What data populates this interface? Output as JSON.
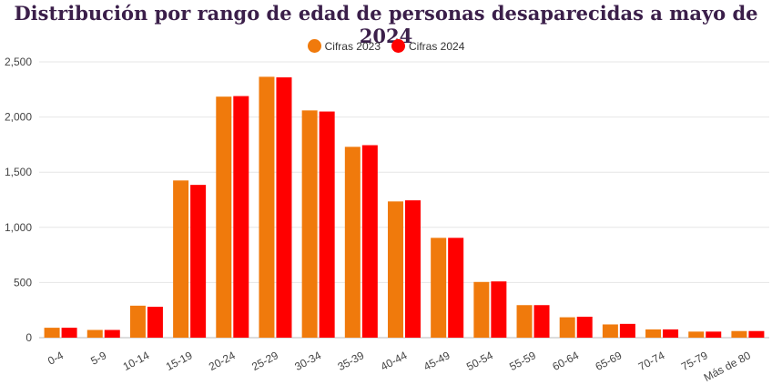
{
  "chart_data": {
    "type": "bar",
    "title": "Distribución por rango de edad de personas desaparecidas a mayo de 2024",
    "xlabel": "",
    "ylabel": "",
    "categories": [
      "0-4",
      "5-9",
      "10-14",
      "15-19",
      "20-24",
      "25-29",
      "30-34",
      "35-39",
      "40-44",
      "45-49",
      "50-54",
      "55-59",
      "60-64",
      "65-69",
      "70-74",
      "75-79",
      "Más de 80"
    ],
    "series": [
      {
        "name": "Cifras 2023",
        "color": "#f07a0c",
        "values": [
          90,
          70,
          290,
          1425,
          2185,
          2365,
          2060,
          1730,
          1235,
          905,
          505,
          295,
          185,
          120,
          75,
          55,
          60
        ]
      },
      {
        "name": "Cifras 2024",
        "color": "#ff0000",
        "values": [
          90,
          70,
          280,
          1385,
          2190,
          2360,
          2050,
          1745,
          1245,
          905,
          510,
          295,
          190,
          125,
          75,
          55,
          60
        ]
      }
    ],
    "ylim": [
      0,
      2500
    ],
    "yticks": [
      "0",
      "500",
      "1,000",
      "1,500",
      "2,000",
      "2,500"
    ],
    "ytick_values": [
      0,
      500,
      1000,
      1500,
      2000,
      2500
    ],
    "legend_position": "top-center",
    "grid": true
  }
}
